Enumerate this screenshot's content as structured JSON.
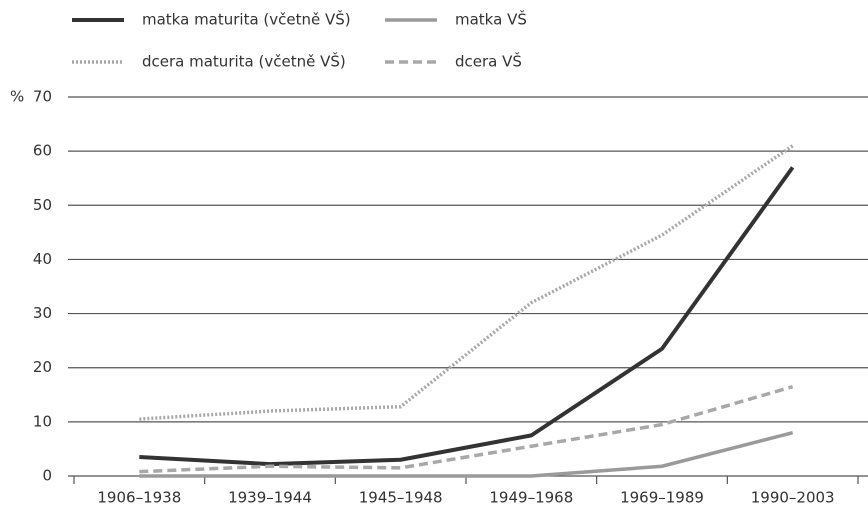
{
  "chart_data": {
    "type": "line",
    "y_label": "%",
    "categories": [
      "1906–1938",
      "1939–1944",
      "1945–1948",
      "1949–1968",
      "1969–1989",
      "1990–2003"
    ],
    "series": [
      {
        "name": "matka maturita (včetně VŠ)",
        "color": "#333333",
        "style": "solid",
        "values": [
          3.5,
          2.2,
          3,
          7.5,
          23.5,
          57
        ]
      },
      {
        "name": "dcera maturita (včetně VŠ)",
        "color": "#a8a8a8",
        "style": "dotted",
        "values": [
          10.5,
          12,
          12.8,
          32,
          44.5,
          61
        ]
      },
      {
        "name": "matka VŠ",
        "color": "#9a9a9a",
        "style": "solid",
        "values": [
          0,
          0,
          0,
          0,
          1.8,
          8
        ]
      },
      {
        "name": "dcera VŠ",
        "color": "#a8a8a8",
        "style": "dashed",
        "values": [
          0.8,
          1.8,
          1.5,
          5.5,
          9.5,
          16.5
        ]
      }
    ],
    "ylim": [
      0,
      70
    ],
    "yticks": [
      0,
      10,
      20,
      30,
      40,
      50,
      60,
      70
    ],
    "grid": true
  }
}
